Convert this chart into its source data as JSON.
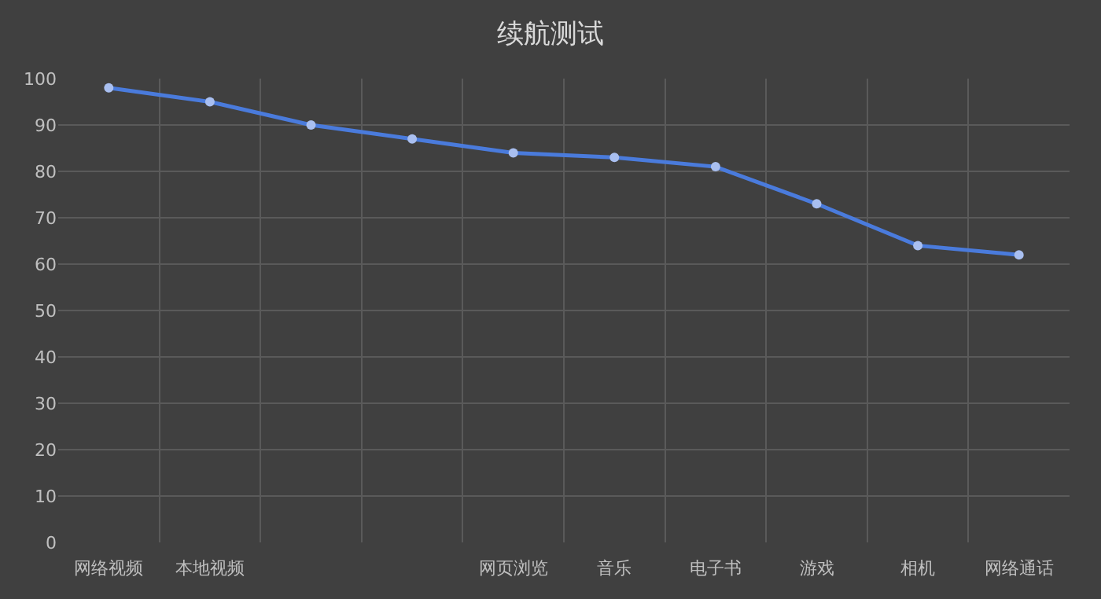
{
  "chart_data": {
    "type": "line",
    "title": "续航测试",
    "categories": [
      "网络视频",
      "本地视频",
      null,
      null,
      "网页浏览",
      "音乐",
      "电子书",
      "游戏",
      "相机",
      "网络通话"
    ],
    "series": [
      {
        "color": "#4a7bdc",
        "values": [
          98,
          95,
          90,
          87,
          84,
          83,
          81,
          73,
          64,
          62
        ]
      }
    ],
    "ylim": [
      0,
      100
    ],
    "yticks": [
      0,
      10,
      20,
      30,
      40,
      50,
      60,
      70,
      80,
      90,
      100
    ],
    "grid": true,
    "marker": "circle",
    "line_style": "solid"
  }
}
